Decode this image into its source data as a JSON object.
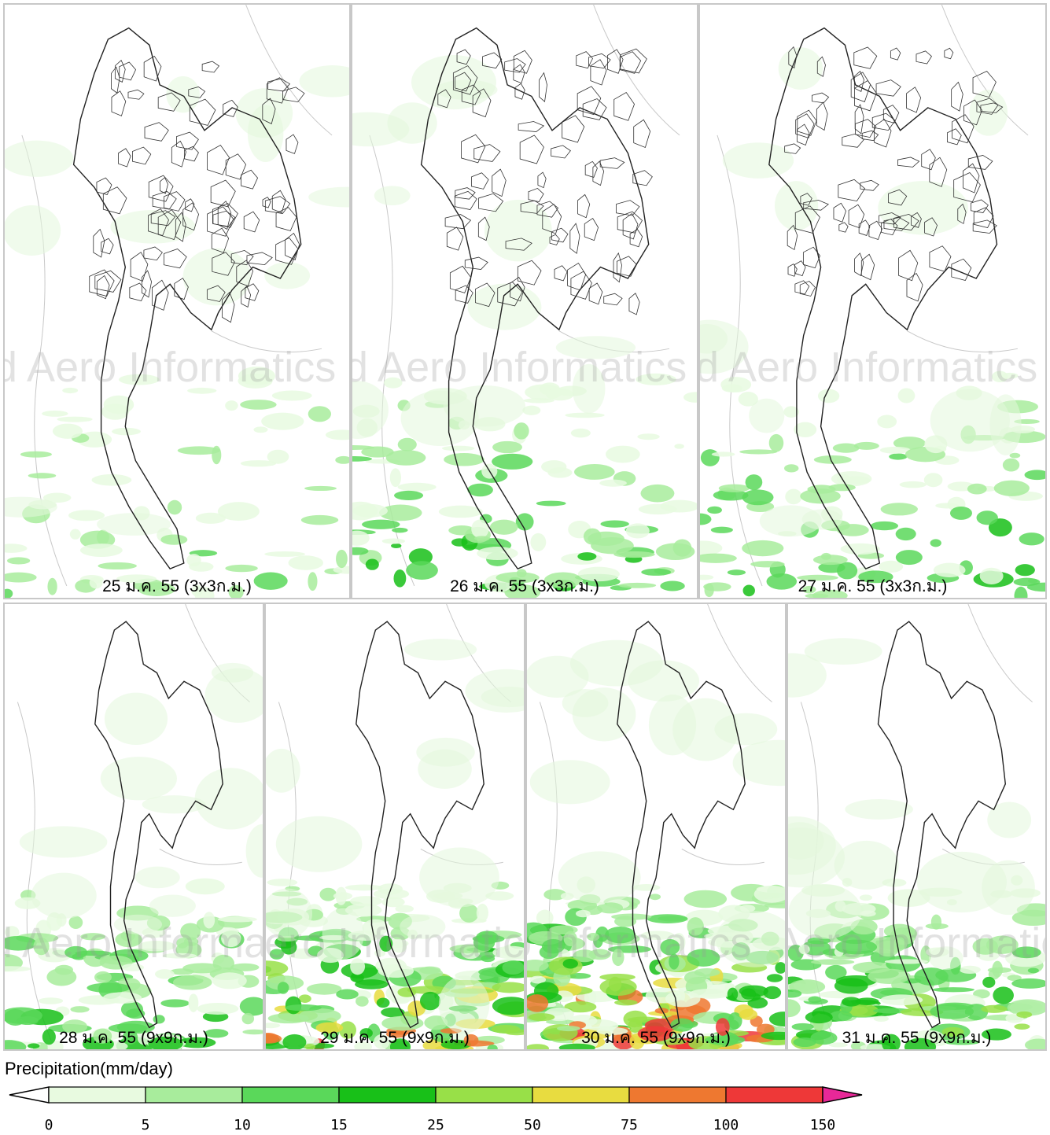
{
  "panels": [
    {
      "caption": "25 ม.ค. 55 (3x3ก.ม.)",
      "grid": "3x3",
      "rain_level": 1
    },
    {
      "caption": "26 ม.ค. 55 (3x3ก.ม.)",
      "grid": "3x3",
      "rain_level": 2
    },
    {
      "caption": "27 ม.ค. 55 (3x3ก.ม.)",
      "grid": "3x3",
      "rain_level": 2
    },
    {
      "caption": "28 ม.ค. 55 (9x9ก.ม.)",
      "grid": "9x9",
      "rain_level": 2
    },
    {
      "caption": "29 ม.ค. 55 (9x9ก.ม.)",
      "grid": "9x9",
      "rain_level": 4
    },
    {
      "caption": "30 ม.ค. 55 (9x9ก.ม.)",
      "grid": "9x9",
      "rain_level": 5
    },
    {
      "caption": "31 ม.ค. 55 (9x9ก.ม.)",
      "grid": "9x9",
      "rain_level": 3
    }
  ],
  "watermark": "d Aero Informatics",
  "legend": {
    "title": "Precipitation(mm/day)",
    "ticks": [
      "0",
      "5",
      "10",
      "15",
      "25",
      "50",
      "75",
      "100",
      "150"
    ],
    "colors": [
      "#e8fae0",
      "#a8ec9c",
      "#5ad85a",
      "#18c018",
      "#98e048",
      "#e8dc40",
      "#ee7830",
      "#ee3838"
    ],
    "under_color": "#ffffff",
    "over_color": "#e82898"
  }
}
